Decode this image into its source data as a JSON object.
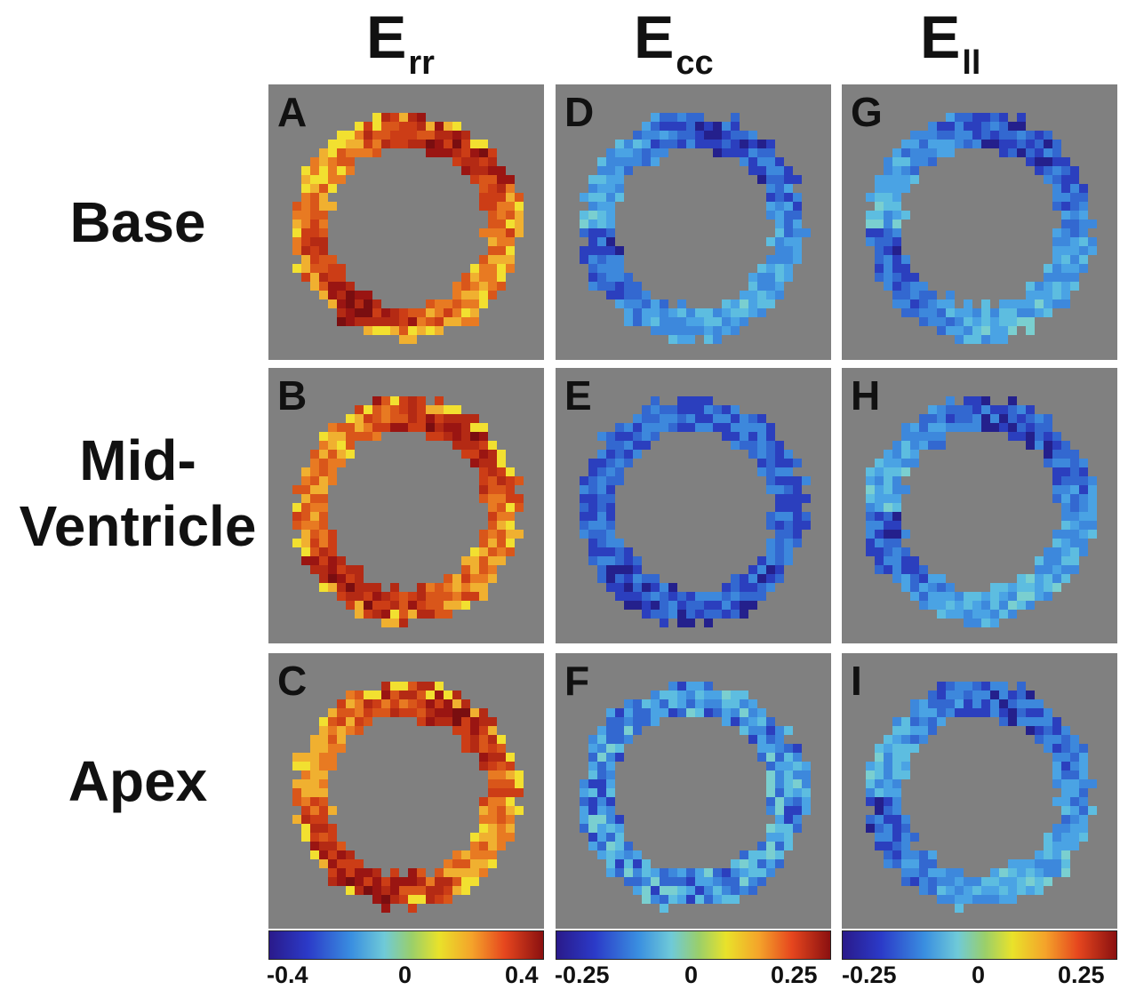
{
  "columns": [
    {
      "main": "E",
      "sub": "rr"
    },
    {
      "main": "E",
      "sub": "cc"
    },
    {
      "main": "E",
      "sub": "ll"
    }
  ],
  "rows": [
    "Base",
    "Mid-",
    "Ventricle",
    "Apex"
  ],
  "panels": [
    {
      "letter": "A",
      "scheme": "hot"
    },
    {
      "letter": "B",
      "scheme": "hot"
    },
    {
      "letter": "C",
      "scheme": "hot"
    },
    {
      "letter": "D",
      "scheme": "cool"
    },
    {
      "letter": "E",
      "scheme": "cooldark"
    },
    {
      "letter": "F",
      "scheme": "coolmix"
    },
    {
      "letter": "G",
      "scheme": "cool"
    },
    {
      "letter": "H",
      "scheme": "cool"
    },
    {
      "letter": "I",
      "scheme": "cool"
    }
  ],
  "colorbars": [
    {
      "min": "-0.4",
      "mid": "0",
      "max": "0.4"
    },
    {
      "min": "-0.25",
      "mid": "0",
      "max": "0.25"
    },
    {
      "min": "-0.25",
      "mid": "0",
      "max": "0.25"
    }
  ],
  "colors": {
    "background_panel": "#808080",
    "hot": [
      "#7a0e10",
      "#9a1512",
      "#b42a14",
      "#cc3d16",
      "#d9561a",
      "#e87a22",
      "#f0b030",
      "#f2e030"
    ],
    "cool": [
      "#24208c",
      "#2b3fbe",
      "#3368d0",
      "#3d88dc",
      "#4aa3e4",
      "#5dbde0",
      "#7acfd0",
      "#8ed0a8"
    ]
  }
}
